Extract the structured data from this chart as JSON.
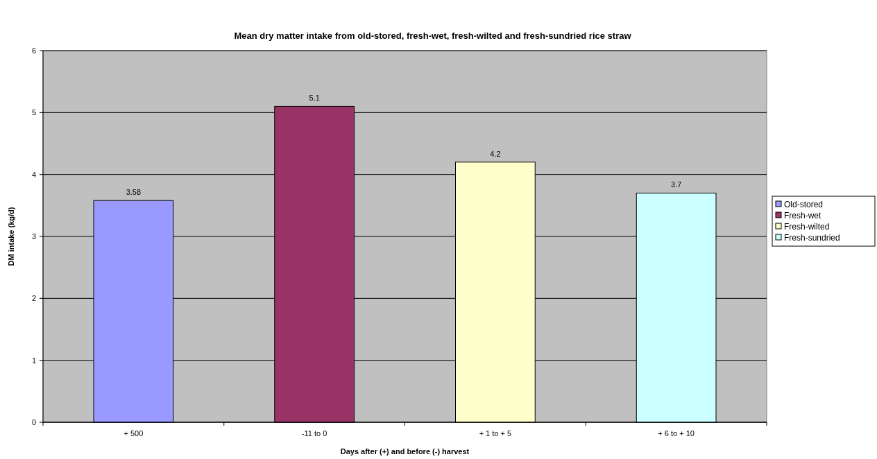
{
  "chart_data": {
    "type": "bar",
    "title": "Mean dry matter intake from old-stored, fresh-wet, fresh-wilted and fresh-sundried rice straw",
    "xlabel": "Days after (+) and before (-) harvest",
    "ylabel": "DM intake (kg/d)",
    "categories": [
      "+ 500",
      "-11 to 0",
      "+ 1 to + 5",
      "+ 6 to + 10"
    ],
    "series": [
      {
        "name": "Old-stored",
        "color": "#9999ff",
        "values": [
          3.58,
          null,
          null,
          null
        ]
      },
      {
        "name": "Fresh-wet",
        "color": "#993366",
        "values": [
          null,
          5.1,
          null,
          null
        ]
      },
      {
        "name": "Fresh-wilted",
        "color": "#ffffcc",
        "values": [
          null,
          null,
          4.2,
          null
        ]
      },
      {
        "name": "Fresh-sundried",
        "color": "#ccffff",
        "values": [
          null,
          null,
          null,
          3.7
        ]
      }
    ],
    "stacked": true,
    "ylim": [
      0,
      6
    ],
    "yticks": [
      0,
      1,
      2,
      3,
      4,
      5,
      6
    ],
    "grid": "y",
    "legend": "right",
    "data_labels": true
  }
}
